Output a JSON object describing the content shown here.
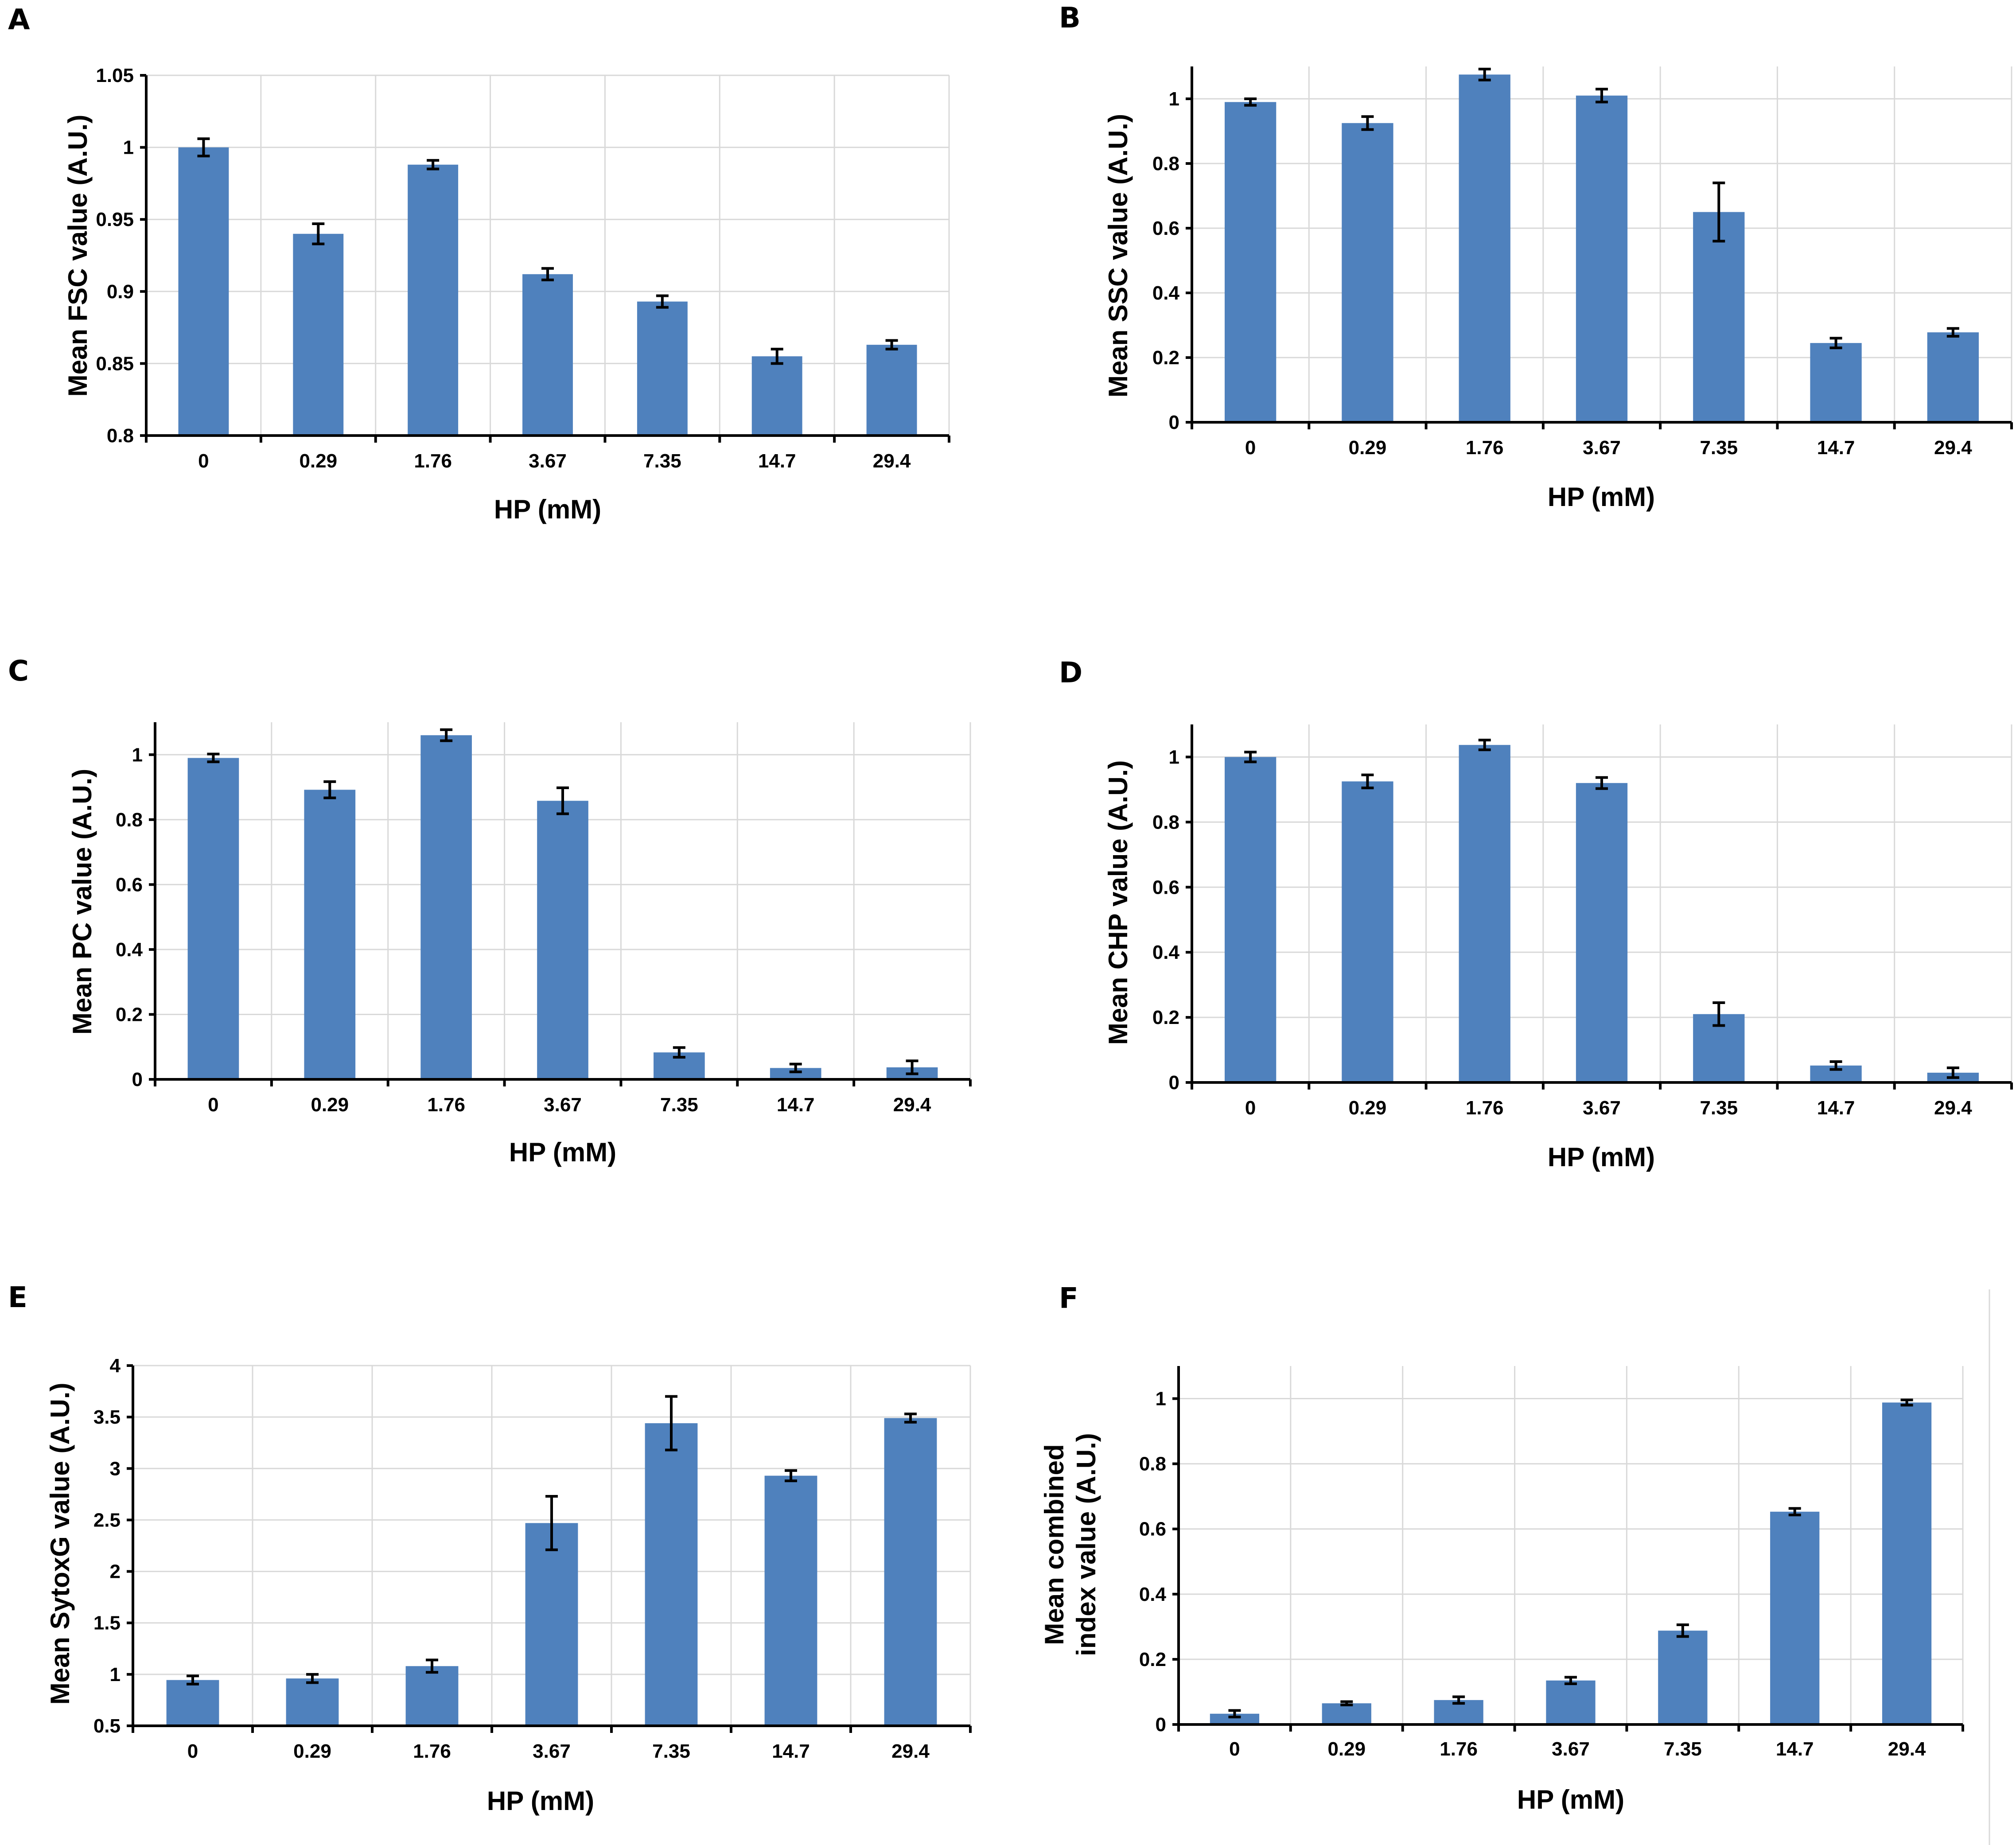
{
  "colors": {
    "bar": "#4f81bd",
    "grid": "#d9d9d9",
    "axis": "#000000"
  },
  "chart_data": [
    {
      "panel": "A",
      "type": "bar",
      "title": "",
      "xlabel": "HP (mM)",
      "ylabel": [
        "Mean  FSC value (A.U.)"
      ],
      "categories": [
        "0",
        "0.29",
        "1.76",
        "3.67",
        "7.35",
        "14.7",
        "29.4"
      ],
      "values": [
        1.0,
        0.94,
        0.988,
        0.912,
        0.893,
        0.855,
        0.863
      ],
      "errors": [
        0.006,
        0.007,
        0.003,
        0.004,
        0.004,
        0.005,
        0.003
      ],
      "ylim": [
        0.8,
        1.05
      ],
      "yticks": [
        0.8,
        0.85,
        0.9,
        0.95,
        1,
        1.05
      ],
      "ytick_labels": [
        "0.8",
        "0.85",
        "0.9",
        "0.95",
        "1",
        "1.05"
      ],
      "grid": true
    },
    {
      "panel": "B",
      "type": "bar",
      "title": "",
      "xlabel": "HP (mM)",
      "ylabel": [
        "Mean  SSC  value (A.U.)"
      ],
      "categories": [
        "0",
        "0.29",
        "1.76",
        "3.67",
        "7.35",
        "14.7",
        "29.4"
      ],
      "values": [
        0.99,
        0.925,
        1.075,
        1.01,
        0.65,
        0.245,
        0.278
      ],
      "errors": [
        0.01,
        0.02,
        0.017,
        0.02,
        0.09,
        0.015,
        0.012
      ],
      "ylim": [
        0,
        1.1
      ],
      "yticks": [
        0,
        0.2,
        0.4,
        0.6,
        0.8,
        1
      ],
      "ytick_labels": [
        "0",
        "0.2",
        "0.4",
        "0.6",
        "0.8",
        "1"
      ],
      "grid": true
    },
    {
      "panel": "C",
      "type": "bar",
      "title": "",
      "xlabel": "HP (mM)",
      "ylabel": [
        "Mean  PC  value (A.U.)"
      ],
      "categories": [
        "0",
        "0.29",
        "1.76",
        "3.67",
        "7.35",
        "14.7",
        "29.4"
      ],
      "values": [
        0.99,
        0.892,
        1.06,
        0.858,
        0.083,
        0.035,
        0.037
      ],
      "errors": [
        0.012,
        0.025,
        0.017,
        0.04,
        0.015,
        0.012,
        0.02
      ],
      "ylim": [
        0,
        1.1
      ],
      "yticks": [
        0,
        0.2,
        0.4,
        0.6,
        0.8,
        1
      ],
      "ytick_labels": [
        "0",
        "0.2",
        "0.4",
        "0.6",
        "0.8",
        "1"
      ],
      "grid": true
    },
    {
      "panel": "D",
      "type": "bar",
      "title": "",
      "xlabel": "HP (mM)",
      "ylabel": [
        "Mean  CHP  value (A.U.)"
      ],
      "categories": [
        "0",
        "0.29",
        "1.76",
        "3.67",
        "7.35",
        "14.7",
        "29.4"
      ],
      "values": [
        1.0,
        0.925,
        1.037,
        0.92,
        0.21,
        0.052,
        0.03
      ],
      "errors": [
        0.015,
        0.02,
        0.015,
        0.017,
        0.035,
        0.012,
        0.015
      ],
      "ylim": [
        0,
        1.1
      ],
      "yticks": [
        0,
        0.2,
        0.4,
        0.6,
        0.8,
        1
      ],
      "ytick_labels": [
        "0",
        "0.2",
        "0.4",
        "0.6",
        "0.8",
        "1"
      ],
      "grid": true
    },
    {
      "panel": "E",
      "type": "bar",
      "title": "",
      "xlabel": "HP (mM)",
      "ylabel": [
        "Mean  SytoxG value (A.U.)"
      ],
      "categories": [
        "0",
        "0.29",
        "1.76",
        "3.67",
        "7.35",
        "14.7",
        "29.4"
      ],
      "values": [
        0.945,
        0.96,
        1.08,
        2.47,
        3.44,
        2.93,
        3.49
      ],
      "errors": [
        0.04,
        0.04,
        0.06,
        0.26,
        0.26,
        0.05,
        0.04
      ],
      "ylim": [
        0.5,
        4
      ],
      "yticks": [
        0.5,
        1,
        1.5,
        2,
        2.5,
        3,
        3.5,
        4
      ],
      "ytick_labels": [
        "0.5",
        "1",
        "1.5",
        "2",
        "2.5",
        "3",
        "3.5",
        "4"
      ],
      "grid": true
    },
    {
      "panel": "F",
      "type": "bar",
      "title": "",
      "xlabel": "HP (mM)",
      "ylabel": [
        "Mean  combined",
        "index  value  (A.U.)"
      ],
      "categories": [
        "0",
        "0.29",
        "1.76",
        "3.67",
        "7.35",
        "14.7",
        "29.4"
      ],
      "values": [
        0.033,
        0.065,
        0.075,
        0.135,
        0.288,
        0.653,
        0.988
      ],
      "errors": [
        0.01,
        0.005,
        0.01,
        0.01,
        0.018,
        0.01,
        0.008
      ],
      "ylim": [
        0,
        1.1
      ],
      "yticks": [
        0,
        0.2,
        0.4,
        0.6,
        0.8,
        1
      ],
      "ytick_labels": [
        "0",
        "0.2",
        "0.4",
        "0.6",
        "0.8",
        "1"
      ],
      "grid": true
    }
  ]
}
